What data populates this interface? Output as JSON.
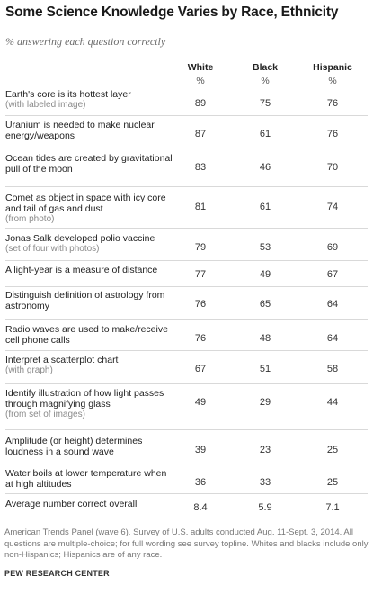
{
  "header": {
    "title": "Some Science Knowledge Varies by Race, Ethnicity",
    "subtitle": "% answering each question correctly"
  },
  "columns": [
    {
      "label": "White",
      "unit": "%"
    },
    {
      "label": "Black",
      "unit": "%"
    },
    {
      "label": "Hispanic",
      "unit": "%"
    }
  ],
  "rows": [
    {
      "question": "Earth's core is its hottest layer",
      "detail": "(with labeled image)",
      "white": "89",
      "black": "75",
      "hispanic": "76"
    },
    {
      "question": "Uranium is needed to make nuclear energy/weapons",
      "detail": "",
      "white": "87",
      "black": "61",
      "hispanic": "76"
    },
    {
      "question": "Ocean tides are created by gravitational pull of the moon",
      "detail": "",
      "white": "83",
      "black": "46",
      "hispanic": "70"
    },
    {
      "question": "Comet as object in space with icy core and tail of gas and dust",
      "detail": "(from photo)",
      "white": "81",
      "black": "61",
      "hispanic": "74"
    },
    {
      "question": "Jonas Salk developed polio vaccine",
      "detail": "(set of four with photos)",
      "white": "79",
      "black": "53",
      "hispanic": "69"
    },
    {
      "question": "A light-year is a measure of distance",
      "detail": "",
      "white": "77",
      "black": "49",
      "hispanic": "67"
    },
    {
      "question": "Distinguish definition of astrology from astronomy",
      "detail": "",
      "white": "76",
      "black": "65",
      "hispanic": "64"
    },
    {
      "question": "Radio waves are used to make/receive cell phone calls",
      "detail": "",
      "white": "76",
      "black": "48",
      "hispanic": "64"
    },
    {
      "question": "Interpret a scatterplot chart",
      "detail": "(with graph)",
      "white": "67",
      "black": "51",
      "hispanic": "58"
    },
    {
      "question": "Identify illustration of how light passes through magnifying glass",
      "detail": "(from set of images)",
      "white": "49",
      "black": "29",
      "hispanic": "44"
    },
    {
      "question": "Amplitude (or height) determines loudness in a sound wave",
      "detail": "",
      "white": "39",
      "black": "23",
      "hispanic": "25"
    },
    {
      "question": "Water boils at lower temperature when at high altitudes",
      "detail": "",
      "white": "36",
      "black": "33",
      "hispanic": "25"
    },
    {
      "question": "Average number correct overall",
      "detail": "",
      "white": "8.4",
      "black": "5.9",
      "hispanic": "7.1"
    }
  ],
  "footer": {
    "note": "American Trends Panel (wave 6). Survey of U.S. adults conducted Aug. 11-Sept. 3, 2014. All questions are multiple-choice; for full wording see survey topline. Whites and blacks include only non-Hispanics; Hispanics are of any race.",
    "source": "PEW RESEARCH CENTER"
  },
  "chart_data": {
    "type": "table",
    "title": "Some Science Knowledge Varies by Race, Ethnicity",
    "subtitle": "% answering each question correctly",
    "columns": [
      "White",
      "Black",
      "Hispanic"
    ],
    "unit": "%",
    "categories": [
      "Earth's core is its hottest layer",
      "Uranium is needed to make nuclear energy/weapons",
      "Ocean tides are created by gravitational pull of the moon",
      "Comet as object in space with icy core and tail of gas and dust",
      "Jonas Salk developed polio vaccine",
      "A light-year is a measure of distance",
      "Distinguish definition of astrology from astronomy",
      "Radio waves are used to make/receive cell phone calls",
      "Interpret a scatterplot chart",
      "Identify illustration of how light passes through magnifying glass",
      "Amplitude (or height) determines loudness in a sound wave",
      "Water boils at lower temperature when at high altitudes",
      "Average number correct overall"
    ],
    "series": [
      {
        "name": "White",
        "values": [
          89,
          87,
          83,
          81,
          79,
          77,
          76,
          76,
          67,
          49,
          39,
          36,
          8.4
        ]
      },
      {
        "name": "Black",
        "values": [
          75,
          61,
          46,
          61,
          53,
          49,
          65,
          48,
          51,
          29,
          23,
          33,
          5.9
        ]
      },
      {
        "name": "Hispanic",
        "values": [
          76,
          76,
          70,
          74,
          69,
          67,
          64,
          64,
          58,
          44,
          25,
          25,
          7.1
        ]
      }
    ]
  }
}
